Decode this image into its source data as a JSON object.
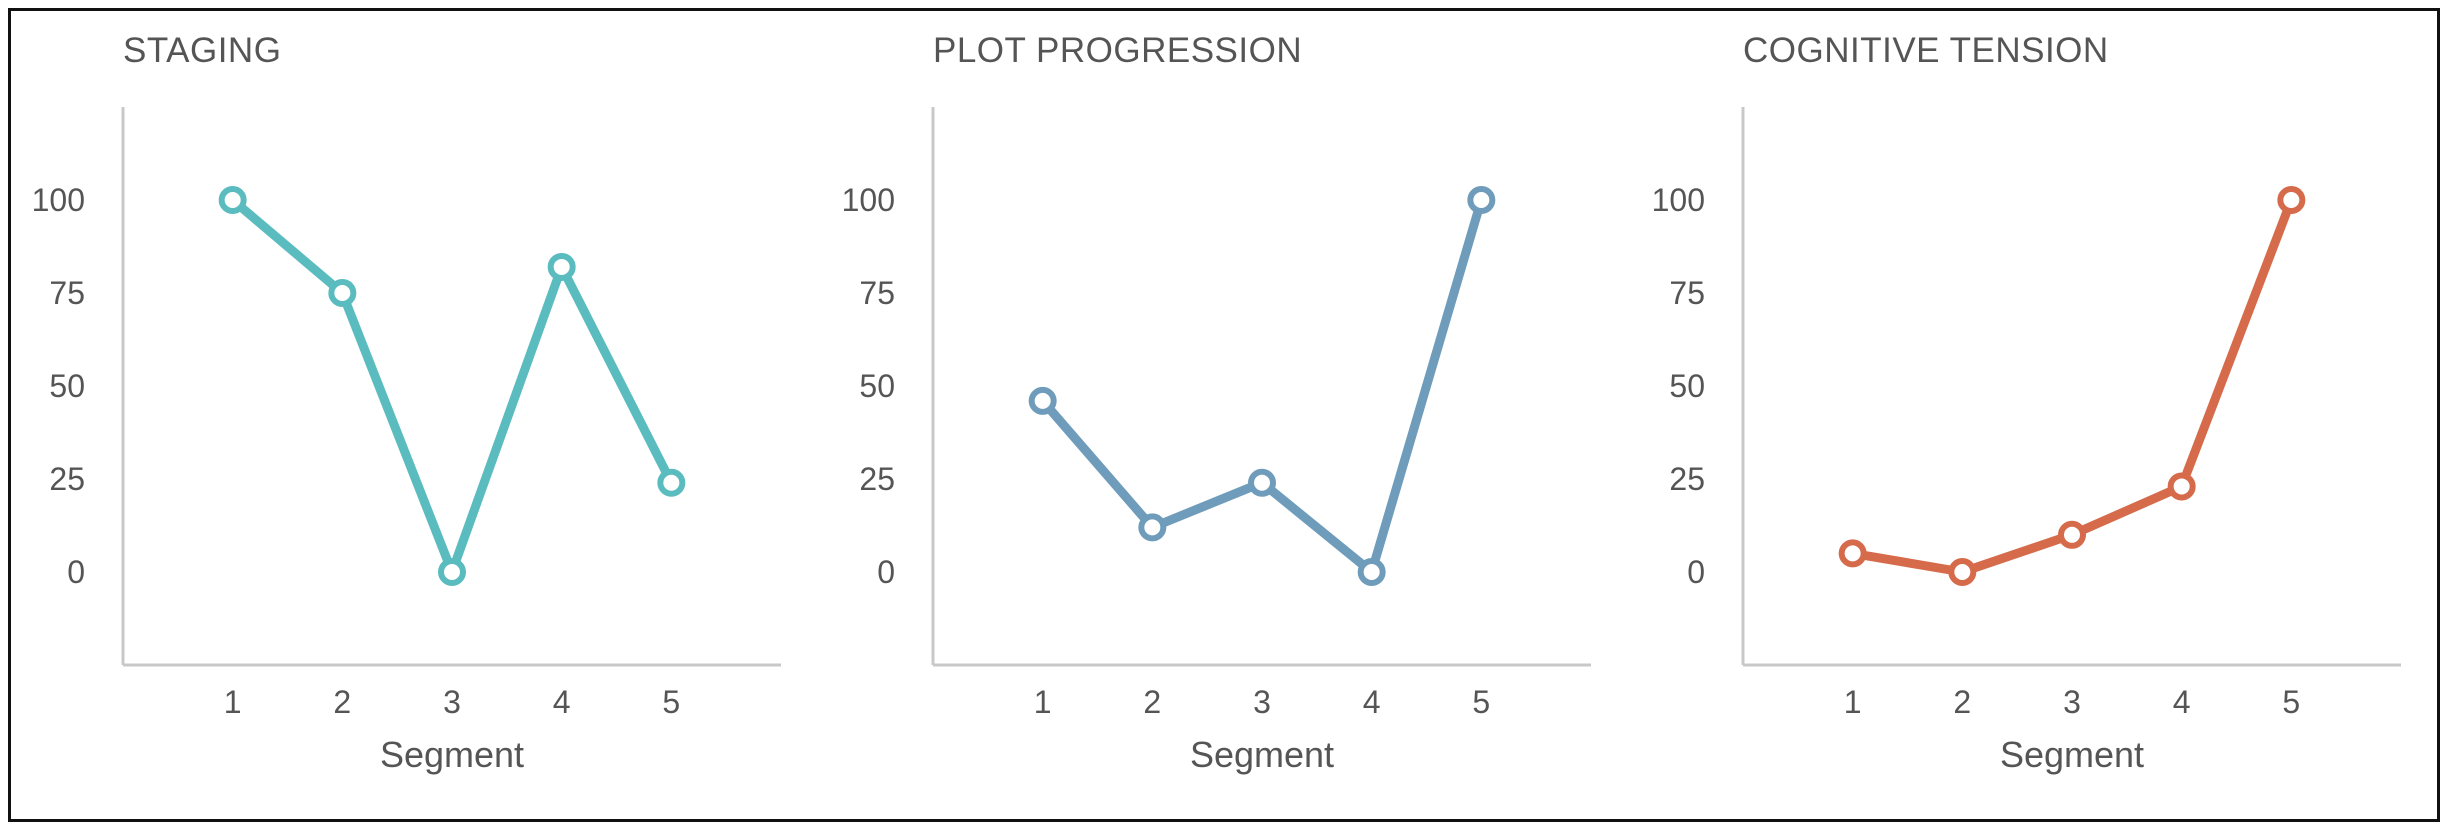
{
  "chart_data": [
    {
      "type": "line",
      "title": "STAGING",
      "xlabel": "Segment",
      "ylabel": "",
      "x": [
        1,
        2,
        3,
        4,
        5
      ],
      "y_ticks": [
        0,
        25,
        50,
        75,
        100
      ],
      "ylim": [
        -25,
        125
      ],
      "xlim": [
        0,
        6
      ],
      "grid": false,
      "series": [
        {
          "values": [
            100,
            75,
            0,
            82,
            24
          ],
          "color": "#5bbcbf"
        }
      ]
    },
    {
      "type": "line",
      "title": "PLOT PROGRESSION",
      "xlabel": "Segment",
      "ylabel": "",
      "x": [
        1,
        2,
        3,
        4,
        5
      ],
      "y_ticks": [
        0,
        25,
        50,
        75,
        100
      ],
      "ylim": [
        -25,
        125
      ],
      "xlim": [
        0,
        6
      ],
      "grid": false,
      "series": [
        {
          "values": [
            46,
            12,
            24,
            0,
            100
          ],
          "color": "#6e9cba"
        }
      ]
    },
    {
      "type": "line",
      "title": "COGNITIVE TENSION",
      "xlabel": "Segment",
      "ylabel": "",
      "x": [
        1,
        2,
        3,
        4,
        5
      ],
      "y_ticks": [
        0,
        25,
        50,
        75,
        100
      ],
      "ylim": [
        -25,
        125
      ],
      "xlim": [
        0,
        6
      ],
      "grid": false,
      "series": [
        {
          "values": [
            5,
            0,
            10,
            23,
            100
          ],
          "color": "#d66b4b"
        }
      ]
    }
  ]
}
